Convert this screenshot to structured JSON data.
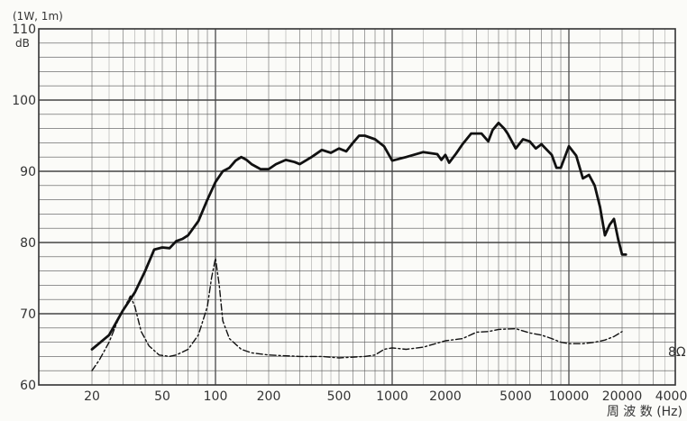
{
  "chart_data": {
    "type": "line",
    "title": "",
    "conditions": "(1W, 1m)",
    "ylabel": "dB",
    "xlabel": "周 波 数 (Hz)",
    "x_scale": "log",
    "xlim": [
      10,
      40000
    ],
    "ylim": [
      60,
      110
    ],
    "grid": true,
    "x_ticks": [
      "20",
      "50",
      "100",
      "200",
      "500",
      "1000",
      "2000",
      "5000",
      "10000",
      "20000",
      "40000"
    ],
    "y_ticks": [
      "60",
      "70",
      "80",
      "90",
      "100",
      "110"
    ],
    "impedance_label": "8Ω",
    "series": [
      {
        "style": "solid",
        "points": [
          [
            20,
            65
          ],
          [
            25,
            67
          ],
          [
            30,
            70.5
          ],
          [
            35,
            73
          ],
          [
            40,
            76
          ],
          [
            45,
            79
          ],
          [
            50,
            79.3
          ],
          [
            55,
            79.2
          ],
          [
            60,
            80.2
          ],
          [
            65,
            80.5
          ],
          [
            70,
            81
          ],
          [
            80,
            83
          ],
          [
            90,
            86
          ],
          [
            100,
            88.5
          ],
          [
            110,
            90
          ],
          [
            120,
            90.5
          ],
          [
            130,
            91.5
          ],
          [
            140,
            92
          ],
          [
            150,
            91.6
          ],
          [
            160,
            91
          ],
          [
            180,
            90.3
          ],
          [
            200,
            90.3
          ],
          [
            220,
            91
          ],
          [
            250,
            91.6
          ],
          [
            280,
            91.3
          ],
          [
            300,
            91
          ],
          [
            350,
            92
          ],
          [
            400,
            93
          ],
          [
            450,
            92.6
          ],
          [
            500,
            93.2
          ],
          [
            550,
            92.8
          ],
          [
            600,
            94
          ],
          [
            650,
            95
          ],
          [
            700,
            95
          ],
          [
            800,
            94.5
          ],
          [
            900,
            93.5
          ],
          [
            1000,
            91.5
          ],
          [
            1200,
            92
          ],
          [
            1500,
            92.7
          ],
          [
            1800,
            92.4
          ],
          [
            1900,
            91.6
          ],
          [
            2000,
            92.3
          ],
          [
            2100,
            91.2
          ],
          [
            2300,
            92.5
          ],
          [
            2500,
            93.8
          ],
          [
            2800,
            95.3
          ],
          [
            3200,
            95.3
          ],
          [
            3500,
            94.2
          ],
          [
            3700,
            95.8
          ],
          [
            4000,
            96.8
          ],
          [
            4300,
            96
          ],
          [
            4500,
            95.3
          ],
          [
            5000,
            93.2
          ],
          [
            5500,
            94.5
          ],
          [
            6000,
            94.2
          ],
          [
            6500,
            93.2
          ],
          [
            7000,
            93.8
          ],
          [
            8000,
            92.3
          ],
          [
            8500,
            90.5
          ],
          [
            9000,
            90.5
          ],
          [
            10000,
            93.5
          ],
          [
            11000,
            92.2
          ],
          [
            12000,
            89
          ],
          [
            13000,
            89.5
          ],
          [
            14000,
            88
          ],
          [
            15000,
            85
          ],
          [
            16000,
            81
          ],
          [
            17000,
            82.5
          ],
          [
            18000,
            83.3
          ],
          [
            19000,
            80.5
          ],
          [
            20000,
            78.3
          ],
          [
            21000,
            78.3
          ]
        ]
      },
      {
        "style": "dash-dot",
        "points": [
          [
            20,
            62
          ],
          [
            22,
            63.5
          ],
          [
            25,
            66
          ],
          [
            28,
            69
          ],
          [
            30,
            70.5
          ],
          [
            33,
            72.5
          ],
          [
            35,
            71
          ],
          [
            38,
            67.5
          ],
          [
            42,
            65.5
          ],
          [
            48,
            64.2
          ],
          [
            55,
            64
          ],
          [
            60,
            64.2
          ],
          [
            70,
            65
          ],
          [
            80,
            67
          ],
          [
            90,
            71
          ],
          [
            95,
            75
          ],
          [
            100,
            77.8
          ],
          [
            105,
            74
          ],
          [
            110,
            69
          ],
          [
            120,
            66.5
          ],
          [
            140,
            65
          ],
          [
            160,
            64.5
          ],
          [
            200,
            64.2
          ],
          [
            300,
            64
          ],
          [
            400,
            64
          ],
          [
            500,
            63.8
          ],
          [
            700,
            64
          ],
          [
            800,
            64.2
          ],
          [
            900,
            65
          ],
          [
            1000,
            65.2
          ],
          [
            1200,
            65
          ],
          [
            1500,
            65.3
          ],
          [
            2000,
            66.2
          ],
          [
            2500,
            66.5
          ],
          [
            3000,
            67.4
          ],
          [
            3500,
            67.5
          ],
          [
            4000,
            67.8
          ],
          [
            5000,
            67.9
          ],
          [
            6000,
            67.3
          ],
          [
            7000,
            67
          ],
          [
            8000,
            66.5
          ],
          [
            9000,
            66
          ],
          [
            10000,
            65.8
          ],
          [
            12000,
            65.8
          ],
          [
            14000,
            66
          ],
          [
            16000,
            66.3
          ],
          [
            18000,
            66.8
          ],
          [
            20000,
            67.5
          ]
        ]
      }
    ]
  }
}
